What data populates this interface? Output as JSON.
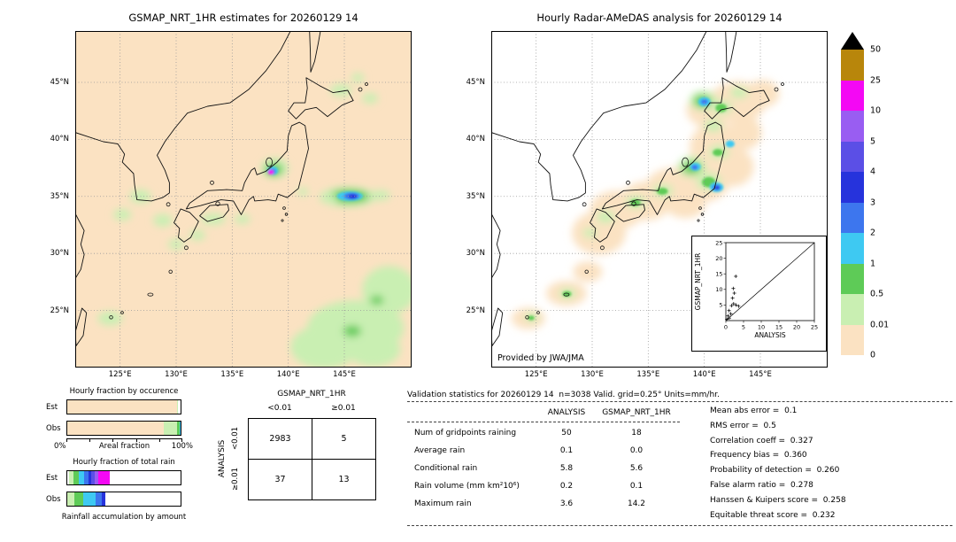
{
  "palette": {
    "peach": "#fbe2c2",
    "light_green": "#c9efb2",
    "green": "#5ecb57",
    "cyan": "#3ec9f2",
    "blue": "#3d76ee",
    "dark_blue": "#2633dc",
    "blue_violet": "#5b4fe6",
    "purple": "#995df2",
    "magenta": "#f408f4",
    "goldenrod": "#b8860b",
    "black": "#000000",
    "white": "#ffffff"
  },
  "colorbar": {
    "labels": [
      "50",
      "25",
      "10",
      "5",
      "4",
      "3",
      "2",
      "1",
      "0.5",
      "0.01",
      "0"
    ],
    "colors_top_to_bottom": [
      "goldenrod",
      "magenta",
      "purple",
      "blue_violet",
      "dark_blue",
      "blue",
      "cyan",
      "green",
      "light_green",
      "peach"
    ],
    "overflow_marker": "black-triangle",
    "units": "mm/hr"
  },
  "chart_data": [
    {
      "type": "map",
      "title": "GSMAP_NRT_1HR estimates for 20260129 14",
      "bg": "peach",
      "lon_range": [
        121,
        151
      ],
      "lat_range": [
        20,
        49.5
      ],
      "lon_ticks": [
        {
          "v": 125,
          "label": "125°E"
        },
        {
          "v": 130,
          "label": "130°E"
        },
        {
          "v": 135,
          "label": "135°E"
        },
        {
          "v": 140,
          "label": "140°E"
        },
        {
          "v": 145,
          "label": "145°E"
        }
      ],
      "lat_ticks": [
        {
          "v": 45,
          "label": "45°N"
        },
        {
          "v": 40,
          "label": "40°N"
        },
        {
          "v": 35,
          "label": "35°N"
        },
        {
          "v": 30,
          "label": "30°N"
        },
        {
          "v": 25,
          "label": "25°N"
        }
      ],
      "gridlines": "dotted",
      "blob_fields": [
        "lon",
        "lat",
        "rx_deg",
        "ry_deg",
        "intensity_color",
        "layer"
      ],
      "blobs": [
        [
          138.8,
          37.5,
          1.2,
          0.85,
          "light_green",
          "soft"
        ],
        [
          138.7,
          37.35,
          0.8,
          0.55,
          "green",
          "soft"
        ],
        [
          138.6,
          37.25,
          0.5,
          0.38,
          "cyan",
          "sharp"
        ],
        [
          138.55,
          37.18,
          0.34,
          0.26,
          "blue",
          "sharp"
        ],
        [
          138.45,
          37.12,
          0.26,
          0.2,
          "magenta",
          "sharp"
        ],
        [
          145.3,
          34.95,
          2.5,
          0.85,
          "light_green",
          "soft"
        ],
        [
          145.4,
          35.0,
          1.8,
          0.6,
          "green",
          "soft"
        ],
        [
          145.5,
          35.02,
          1.15,
          0.42,
          "cyan",
          "sharp"
        ],
        [
          145.65,
          35.02,
          0.7,
          0.3,
          "blue",
          "sharp"
        ],
        [
          145.75,
          35.0,
          0.38,
          0.2,
          "dark_blue",
          "sharp"
        ],
        [
          143.6,
          34.8,
          0.8,
          0.4,
          "light_green",
          "soft"
        ],
        [
          148.2,
          35.1,
          0.9,
          0.45,
          "light_green",
          "soft"
        ],
        [
          126.8,
          35.0,
          0.95,
          0.6,
          "light_green",
          "soft"
        ],
        [
          125.2,
          33.4,
          0.8,
          0.5,
          "light_green",
          "soft"
        ],
        [
          128.8,
          32.9,
          0.85,
          0.55,
          "light_green",
          "soft"
        ],
        [
          131.9,
          31.6,
          0.7,
          0.45,
          "light_green",
          "soft"
        ],
        [
          133.3,
          33.0,
          1.1,
          0.5,
          "light_green",
          "soft"
        ],
        [
          135.9,
          33.0,
          0.7,
          0.4,
          "light_green",
          "soft"
        ],
        [
          130.0,
          30.8,
          0.7,
          0.45,
          "light_green",
          "soft"
        ],
        [
          124.1,
          24.3,
          1.1,
          0.6,
          "light_green",
          "soft"
        ],
        [
          141.3,
          35.4,
          0.5,
          0.35,
          "light_green",
          "soft"
        ],
        [
          144.7,
          44.3,
          0.95,
          0.55,
          "light_green",
          "soft"
        ],
        [
          147.3,
          43.6,
          0.7,
          0.45,
          "light_green",
          "soft"
        ],
        [
          146.2,
          45.4,
          0.55,
          0.4,
          "light_green",
          "soft"
        ],
        [
          146.0,
          23.5,
          4.3,
          2.4,
          "light_green",
          "soft"
        ],
        [
          143.2,
          21.8,
          3.0,
          1.9,
          "light_green",
          "soft"
        ],
        [
          149.0,
          26.8,
          2.4,
          2.1,
          "light_green",
          "soft"
        ],
        [
          147.6,
          21.6,
          2.4,
          1.5,
          "light_green",
          "soft"
        ],
        [
          145.7,
          23.2,
          0.8,
          0.5,
          "green",
          "soft"
        ],
        [
          147.9,
          25.9,
          0.6,
          0.4,
          "green",
          "soft"
        ]
      ]
    },
    {
      "type": "map",
      "title": "Hourly Radar-AMeDAS analysis for 20260129 14",
      "credit": "Provided by JWA/JMA",
      "bg": "white",
      "lon_range": [
        121,
        151
      ],
      "lat_range": [
        20,
        49.5
      ],
      "lon_ticks": [
        {
          "v": 125,
          "label": "125°E"
        },
        {
          "v": 130,
          "label": "130°E"
        },
        {
          "v": 135,
          "label": "135°E"
        },
        {
          "v": 140,
          "label": "140°E"
        },
        {
          "v": 145,
          "label": "145°E"
        }
      ],
      "lat_ticks": [
        {
          "v": 45,
          "label": "45°N"
        },
        {
          "v": 40,
          "label": "40°N"
        },
        {
          "v": 35,
          "label": "35°N"
        },
        {
          "v": 30,
          "label": "30°N"
        },
        {
          "v": 25,
          "label": "25°N"
        }
      ],
      "gridlines": "dotted",
      "blob_fields": [
        "lon",
        "lat",
        "rx_deg",
        "ry_deg",
        "intensity_color",
        "layer"
      ],
      "blobs": [
        [
          124.3,
          24.3,
          1.5,
          0.95,
          "peach",
          "soft"
        ],
        [
          127.7,
          26.5,
          1.8,
          1.1,
          "peach",
          "soft"
        ],
        [
          129.6,
          28.4,
          1.3,
          0.9,
          "peach",
          "soft"
        ],
        [
          130.6,
          31.8,
          2.4,
          1.9,
          "peach",
          "soft"
        ],
        [
          132.2,
          33.8,
          2.4,
          1.7,
          "peach",
          "soft"
        ],
        [
          134.8,
          34.6,
          2.3,
          1.7,
          "peach",
          "soft"
        ],
        [
          137.2,
          35.6,
          2.5,
          1.9,
          "peach",
          "soft"
        ],
        [
          139.8,
          36.6,
          2.6,
          2.1,
          "peach",
          "soft"
        ],
        [
          141.0,
          39.3,
          2.3,
          2.2,
          "peach",
          "soft"
        ],
        [
          142.6,
          37.6,
          1.8,
          1.7,
          "peach",
          "soft"
        ],
        [
          140.6,
          42.6,
          2.2,
          1.6,
          "peach",
          "soft"
        ],
        [
          143.0,
          43.3,
          2.5,
          1.8,
          "peach",
          "soft"
        ],
        [
          145.2,
          44.0,
          1.5,
          1.2,
          "peach",
          "soft"
        ],
        [
          138.3,
          34.3,
          1.8,
          1.2,
          "peach",
          "soft"
        ],
        [
          143.6,
          40.6,
          1.5,
          1.5,
          "peach",
          "soft"
        ],
        [
          139.9,
          43.4,
          1.2,
          0.85,
          "light_green",
          "soft"
        ],
        [
          139.8,
          43.35,
          0.75,
          0.55,
          "green",
          "soft"
        ],
        [
          141.6,
          42.8,
          0.9,
          0.6,
          "light_green",
          "soft"
        ],
        [
          141.5,
          42.75,
          0.5,
          0.38,
          "green",
          "sharp"
        ],
        [
          143.1,
          44.1,
          0.8,
          0.5,
          "light_green",
          "soft"
        ],
        [
          140.8,
          41.2,
          0.8,
          0.55,
          "light_green",
          "soft"
        ],
        [
          141.3,
          38.9,
          0.9,
          0.6,
          "light_green",
          "soft"
        ],
        [
          141.2,
          38.85,
          0.45,
          0.3,
          "green",
          "sharp"
        ],
        [
          138.9,
          37.6,
          1.25,
          0.9,
          "light_green",
          "soft"
        ],
        [
          138.85,
          37.5,
          0.8,
          0.55,
          "green",
          "soft"
        ],
        [
          140.4,
          36.3,
          1.1,
          0.75,
          "light_green",
          "soft"
        ],
        [
          140.4,
          36.25,
          0.6,
          0.45,
          "green",
          "sharp"
        ],
        [
          136.3,
          35.5,
          0.9,
          0.55,
          "light_green",
          "soft"
        ],
        [
          136.25,
          35.45,
          0.5,
          0.3,
          "green",
          "sharp"
        ],
        [
          133.9,
          34.5,
          0.9,
          0.55,
          "light_green",
          "soft"
        ],
        [
          133.85,
          34.45,
          0.45,
          0.3,
          "green",
          "sharp"
        ],
        [
          131.2,
          33.2,
          0.8,
          0.55,
          "light_green",
          "soft"
        ],
        [
          129.8,
          31.8,
          0.6,
          0.4,
          "light_green",
          "soft"
        ],
        [
          127.8,
          26.5,
          0.75,
          0.45,
          "light_green",
          "soft"
        ],
        [
          127.75,
          26.45,
          0.4,
          0.25,
          "green",
          "sharp"
        ],
        [
          124.6,
          24.4,
          0.6,
          0.38,
          "light_green",
          "soft"
        ],
        [
          124.55,
          24.35,
          0.3,
          0.2,
          "green",
          "sharp"
        ],
        [
          140.0,
          43.3,
          0.55,
          0.4,
          "cyan",
          "sharp"
        ],
        [
          140.0,
          43.3,
          0.3,
          0.22,
          "blue",
          "sharp"
        ],
        [
          139.2,
          37.6,
          0.5,
          0.36,
          "cyan",
          "sharp"
        ],
        [
          139.15,
          37.55,
          0.27,
          0.2,
          "blue",
          "sharp"
        ],
        [
          141.1,
          35.8,
          0.6,
          0.42,
          "cyan",
          "sharp"
        ],
        [
          141.1,
          35.78,
          0.36,
          0.26,
          "blue",
          "sharp"
        ],
        [
          141.15,
          35.76,
          0.18,
          0.13,
          "dark_blue",
          "sharp"
        ],
        [
          142.3,
          39.6,
          0.4,
          0.3,
          "cyan",
          "sharp"
        ]
      ]
    },
    {
      "type": "scatter",
      "xlabel": "ANALYSIS",
      "ylabel": "GSMAP_NRT_1HR",
      "xlim": [
        0,
        25
      ],
      "ylim": [
        0,
        25
      ],
      "ticks": [
        0,
        5,
        10,
        15,
        20,
        25
      ],
      "diagonal": true,
      "marker": "plus",
      "points": [
        [
          0.3,
          0.4
        ],
        [
          0.6,
          1.5
        ],
        [
          1.0,
          0.8
        ],
        [
          1.4,
          2.2
        ],
        [
          0.9,
          3.2
        ],
        [
          1.6,
          4.8
        ],
        [
          2.2,
          5.4
        ],
        [
          2.9,
          5.0
        ],
        [
          1.9,
          7.2
        ],
        [
          2.4,
          8.8
        ],
        [
          2.1,
          10.3
        ],
        [
          2.8,
          14.2
        ],
        [
          3.6,
          4.6
        ]
      ]
    },
    {
      "type": "bar",
      "title": "Hourly fraction by occurence",
      "xlabel": "Areal fraction",
      "x_min_label": "0%",
      "x_max_label": "100%",
      "rows": [
        {
          "label": "Est",
          "segments": [
            {
              "color": "peach",
              "pct": 96.5
            },
            {
              "color": "light_green",
              "pct": 1.5
            },
            {
              "color": "white",
              "pct": 2
            }
          ]
        },
        {
          "label": "Obs",
          "segments": [
            {
              "color": "peach",
              "pct": 85
            },
            {
              "color": "light_green",
              "pct": 12
            },
            {
              "color": "green",
              "pct": 2
            },
            {
              "color": "cyan",
              "pct": 1
            }
          ]
        }
      ]
    },
    {
      "type": "bar",
      "title": "Hourly fraction of total rain",
      "xlabel": "Rainfall accumulation by amount",
      "rows": [
        {
          "label": "Est",
          "segments": [
            {
              "color": "white",
              "pct": 1.5
            },
            {
              "color": "light_green",
              "pct": 4
            },
            {
              "color": "green",
              "pct": 5
            },
            {
              "color": "cyan",
              "pct": 4.5
            },
            {
              "color": "blue",
              "pct": 3.5
            },
            {
              "color": "dark_blue",
              "pct": 2.5
            },
            {
              "color": "blue_violet",
              "pct": 3
            },
            {
              "color": "purple",
              "pct": 3.5
            },
            {
              "color": "magenta",
              "pct": 10
            },
            {
              "color": "white",
              "pct": 62.5
            }
          ]
        },
        {
          "label": "Obs",
          "segments": [
            {
              "color": "light_green",
              "pct": 6
            },
            {
              "color": "green",
              "pct": 8
            },
            {
              "color": "cyan",
              "pct": 11
            },
            {
              "color": "blue",
              "pct": 5.5
            },
            {
              "color": "dark_blue",
              "pct": 3.5
            },
            {
              "color": "white",
              "pct": 66
            }
          ]
        }
      ]
    },
    {
      "type": "table",
      "name": "contingency",
      "col_group": "GSMAP_NRT_1HR",
      "row_group": "ANALYSIS",
      "col_labels": [
        "<0.01",
        "≥0.01"
      ],
      "row_labels": [
        "<0.01",
        "≥0.01"
      ],
      "values": [
        [
          "2983",
          "5"
        ],
        [
          "37",
          "13"
        ]
      ]
    },
    {
      "type": "table",
      "name": "validation_stats",
      "title": "Validation statistics for 20260129 14  n=3038 Valid. grid=0.25° Units=mm/hr.",
      "col_headers": [
        "ANALYSIS",
        "GSMAP_NRT_1HR"
      ],
      "rows": [
        [
          "Num of gridpoints raining",
          "50",
          "18"
        ],
        [
          "Average rain",
          "0.1",
          "0.0"
        ],
        [
          "Conditional rain",
          "5.8",
          "5.6"
        ],
        [
          "Rain volume (mm km²10⁶)",
          "0.2",
          "0.1"
        ],
        [
          "Maximum rain",
          "3.6",
          "14.2"
        ]
      ],
      "metrics": [
        [
          "Mean abs error",
          "0.1"
        ],
        [
          "RMS error",
          "0.5"
        ],
        [
          "Correlation coeff",
          "0.327"
        ],
        [
          "Frequency bias",
          "0.360"
        ],
        [
          "Probability of detection",
          "0.260"
        ],
        [
          "False alarm ratio",
          "0.278"
        ],
        [
          "Hanssen & Kuipers score",
          "0.258"
        ],
        [
          "Equitable threat score",
          "0.232"
        ]
      ]
    }
  ]
}
